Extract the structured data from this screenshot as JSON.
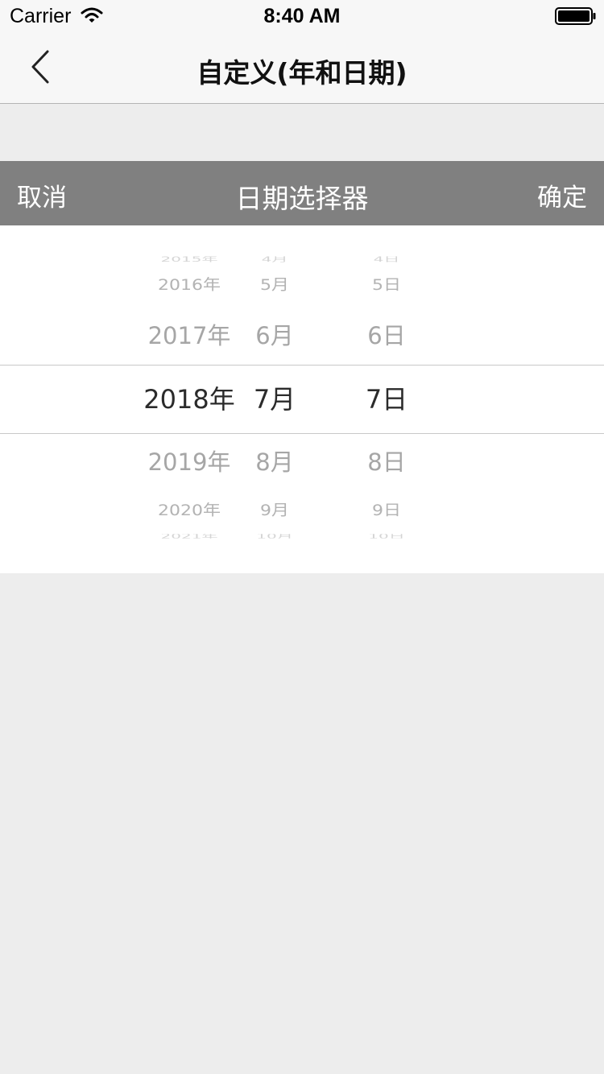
{
  "status_bar": {
    "carrier": "Carrier",
    "time": "8:40 AM",
    "icons": [
      "wifi-icon",
      "battery-icon"
    ]
  },
  "nav": {
    "title": "自定义(年和日期)",
    "back_icon": "chevron-left-icon"
  },
  "toolbar": {
    "cancel_label": "取消",
    "title": "日期选择器",
    "confirm_label": "确定"
  },
  "picker": {
    "selected": {
      "year": "2018年",
      "month": "7月",
      "day": "7日"
    },
    "years": [
      "2015年",
      "2016年",
      "2017年",
      "2018年",
      "2019年",
      "2020年",
      "2021年"
    ],
    "months": [
      "4月",
      "5月",
      "6月",
      "7月",
      "8月",
      "9月",
      "10月"
    ],
    "days": [
      "4日",
      "5日",
      "6日",
      "7日",
      "8日",
      "9日",
      "10日"
    ]
  },
  "colors": {
    "toolbar_bg": "#808080",
    "page_bg": "#ededed",
    "nav_bg": "#f7f7f7",
    "selected_text": "#2b2b2b",
    "unselected_text": "#a6a6a6"
  }
}
